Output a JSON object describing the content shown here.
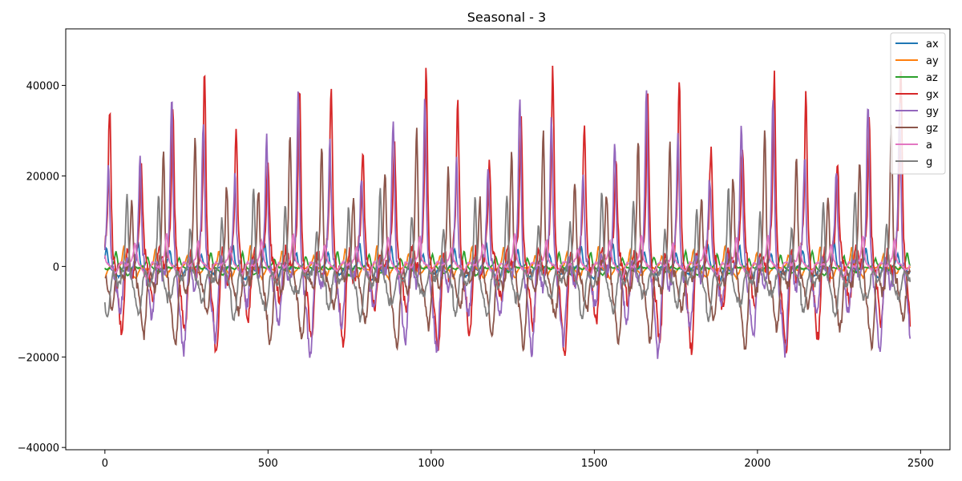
{
  "chart_data": {
    "type": "line",
    "title": "Seasonal - 3",
    "xlabel": "",
    "ylabel": "",
    "xlim": [
      -120,
      2590
    ],
    "ylim": [
      -40500,
      52500
    ],
    "x_ticks": [
      0,
      500,
      1000,
      1500,
      2000,
      2500
    ],
    "x_tick_labels": [
      "0",
      "500",
      "1000",
      "1500",
      "2000",
      "2500"
    ],
    "y_ticks": [
      -40000,
      -20000,
      0,
      20000,
      40000
    ],
    "y_tick_labels": [
      "−40000",
      "−20000",
      "0",
      "20000",
      "40000"
    ],
    "grid": false,
    "legend_position": "upper right",
    "n_points": 2470,
    "series": [
      {
        "name": "ax",
        "color": "#1f77b4",
        "period": 97,
        "amplitude": 3500,
        "offset": 0,
        "phase": 0.1
      },
      {
        "name": "ay",
        "color": "#ff7f0e",
        "period": 97,
        "amplitude": 3000,
        "offset": 0,
        "phase": 0.55
      },
      {
        "name": "az",
        "color": "#2ca02c",
        "period": 97,
        "amplitude": 2200,
        "offset": 0,
        "phase": 0.8
      },
      {
        "name": "gx",
        "color": "#d62728",
        "period": 97,
        "amplitude": 26000,
        "offset": 4000,
        "phase": 0.0
      },
      {
        "name": "gy",
        "color": "#9467bd",
        "period": 97,
        "amplitude": 24000,
        "offset": 2000,
        "phase": 0.04
      },
      {
        "name": "gz",
        "color": "#8c564b",
        "period": 97,
        "amplitude": 20000,
        "offset": 0,
        "phase": 0.3
      },
      {
        "name": "a",
        "color": "#e377c2",
        "period": 97,
        "amplitude": 4000,
        "offset": 1000,
        "phase": 0.2
      },
      {
        "name": "g",
        "color": "#7f7f7f",
        "period": 97,
        "amplitude": 12000,
        "offset": -1000,
        "phase": 0.45
      }
    ]
  }
}
